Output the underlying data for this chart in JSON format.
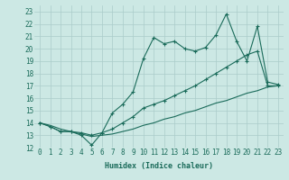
{
  "xlabel": "Humidex (Indice chaleur)",
  "bg_color": "#cce8e4",
  "grid_color": "#aaccca",
  "line_color": "#1a6b5a",
  "xlim": [
    -0.5,
    23.5
  ],
  "ylim": [
    12,
    23.5
  ],
  "yticks": [
    12,
    13,
    14,
    15,
    16,
    17,
    18,
    19,
    20,
    21,
    22,
    23
  ],
  "xticks": [
    0,
    1,
    2,
    3,
    4,
    5,
    6,
    7,
    8,
    9,
    10,
    11,
    12,
    13,
    14,
    15,
    16,
    17,
    18,
    19,
    20,
    21,
    22,
    23
  ],
  "line1_x": [
    0,
    1,
    2,
    3,
    4,
    5,
    6,
    7,
    8,
    9,
    10,
    11,
    12,
    13,
    14,
    15,
    16,
    17,
    18,
    19,
    20,
    21,
    22,
    23
  ],
  "line1_y": [
    14.0,
    13.7,
    13.3,
    13.3,
    13.0,
    12.2,
    13.2,
    14.8,
    15.5,
    16.5,
    19.2,
    20.9,
    20.4,
    20.6,
    20.0,
    19.8,
    20.1,
    21.1,
    22.8,
    20.6,
    19.0,
    21.8,
    17.3,
    17.1
  ],
  "line2_x": [
    0,
    1,
    2,
    3,
    4,
    5,
    6,
    7,
    8,
    9,
    10,
    11,
    12,
    13,
    14,
    15,
    16,
    17,
    18,
    19,
    20,
    21,
    22,
    23
  ],
  "line2_y": [
    14.0,
    13.7,
    13.3,
    13.3,
    13.2,
    13.0,
    13.2,
    13.5,
    14.0,
    14.5,
    15.2,
    15.5,
    15.8,
    16.2,
    16.6,
    17.0,
    17.5,
    18.0,
    18.5,
    19.0,
    19.5,
    19.8,
    17.0,
    17.0
  ],
  "line3_x": [
    0,
    1,
    2,
    3,
    4,
    5,
    6,
    7,
    8,
    9,
    10,
    11,
    12,
    13,
    14,
    15,
    16,
    17,
    18,
    19,
    20,
    21,
    22,
    23
  ],
  "line3_y": [
    14.0,
    13.8,
    13.5,
    13.3,
    13.1,
    12.9,
    13.0,
    13.1,
    13.3,
    13.5,
    13.8,
    14.0,
    14.3,
    14.5,
    14.8,
    15.0,
    15.3,
    15.6,
    15.8,
    16.1,
    16.4,
    16.6,
    16.9,
    17.0
  ]
}
